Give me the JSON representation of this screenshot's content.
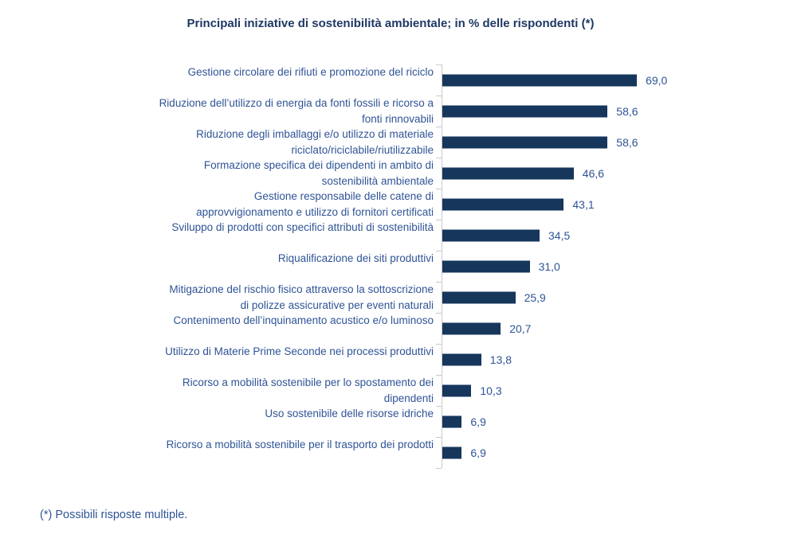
{
  "title": "Principali iniziative di sostenibilità ambientale; in % delle rispondenti (*)",
  "footnote": "(*) Possibili risposte multiple.",
  "colors": {
    "bar": "#16365C",
    "title_text": "#1F3864",
    "label_text": "#2F5496",
    "axis": "#C9C9C9",
    "background": "#FFFFFF"
  },
  "chart_data": {
    "type": "bar",
    "orientation": "horizontal",
    "title": "Principali iniziative di sostenibilità ambientale; in % delle rispondenti (*)",
    "xlabel": "",
    "ylabel": "",
    "grid": false,
    "legend": false,
    "value_format": "comma-decimal-percent",
    "categories": [
      "Gestione circolare dei rifiuti e promozione del riciclo",
      "Riduzione dell’utilizzo di energia da fonti fossili e ricorso a fonti rinnovabili",
      "Riduzione degli imballaggi e/o utilizzo di materiale riciclato/riciclabile/riutilizzabile",
      "Formazione specifica dei dipendenti in ambito di sostenibilità ambientale",
      "Gestione responsabile delle catene di approvvigionamento e utilizzo di fornitori certificati",
      "Sviluppo di prodotti con specifici attributi di sostenibilità",
      "Riqualificazione dei siti produttivi",
      "Mitigazione del rischio fisico attraverso la sottoscrizione di polizze assicurative per eventi naturali",
      "Contenimento dell’inquinamento acustico e/o luminoso",
      "Utilizzo di Materie Prime Seconde nei processi produttivi",
      "Ricorso a mobilità sostenibile per lo spostamento dei dipendenti",
      "Uso sostenibile delle risorse idriche",
      "Ricorso a mobilità sostenibile per il trasporto dei prodotti"
    ],
    "category_lines": [
      [
        "Gestione circolare dei rifiuti e promozione del riciclo"
      ],
      [
        "Riduzione dell’utilizzo di energia da fonti fossili e ricorso a",
        "fonti rinnovabili"
      ],
      [
        "Riduzione degli imballaggi e/o utilizzo di materiale",
        "riciclato/riciclabile/riutilizzabile"
      ],
      [
        "Formazione specifica dei dipendenti in ambito di",
        "sostenibilità ambientale"
      ],
      [
        "Gestione responsabile delle catene di",
        "approvvigionamento e utilizzo di fornitori certificati"
      ],
      [
        "Sviluppo di prodotti con specifici attributi di sostenibilità"
      ],
      [
        "Riqualificazione dei siti produttivi"
      ],
      [
        "Mitigazione del rischio fisico attraverso la sottoscrizione",
        "di polizze assicurative per eventi naturali"
      ],
      [
        "Contenimento dell’inquinamento acustico e/o luminoso"
      ],
      [
        "Utilizzo di Materie Prime Seconde nei processi produttivi"
      ],
      [
        "Ricorso a mobilità sostenibile per lo spostamento dei",
        "dipendenti"
      ],
      [
        "Uso sostenibile delle risorse idriche"
      ],
      [
        "Ricorso a mobilità sostenibile per il trasporto dei prodotti"
      ]
    ],
    "values": [
      69.0,
      58.6,
      58.6,
      46.6,
      43.1,
      34.5,
      31.0,
      25.9,
      20.7,
      13.8,
      10.3,
      6.9,
      6.9
    ],
    "value_labels": [
      "69,0",
      "58,6",
      "58,6",
      "46,6",
      "43,1",
      "34,5",
      "31,0",
      "25,9",
      "20,7",
      "13,8",
      "10,3",
      "6,9",
      "6,9"
    ]
  }
}
